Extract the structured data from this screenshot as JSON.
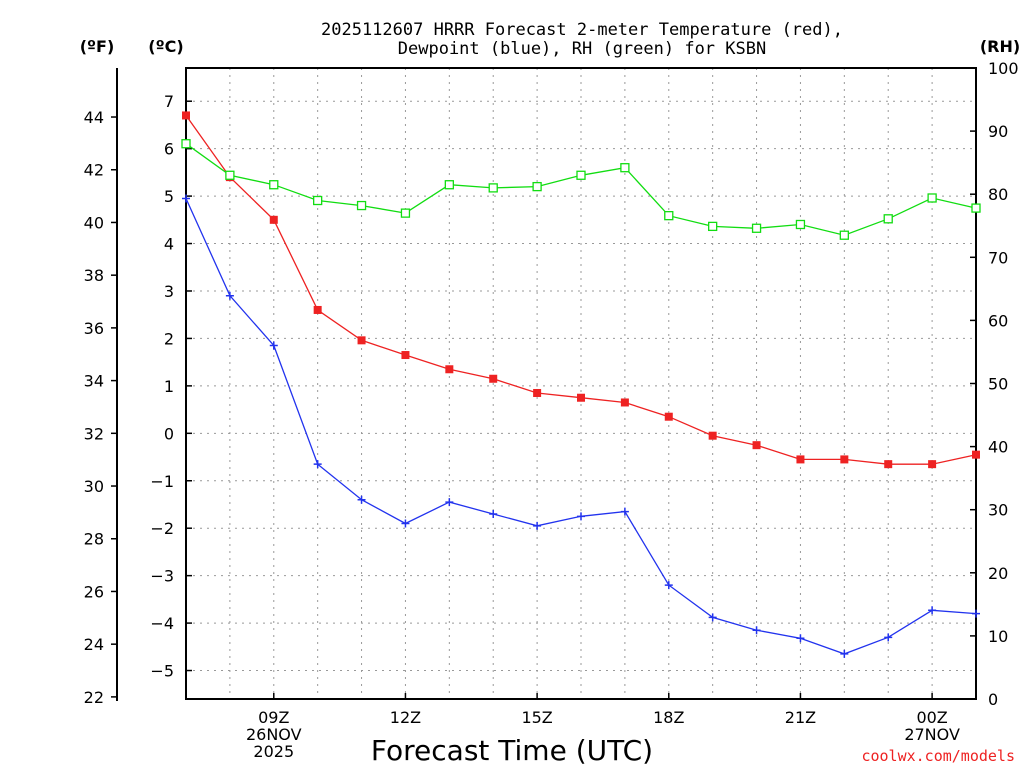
{
  "chart_data": {
    "type": "line",
    "title_lines": [
      "2025112607 HRRR Forecast 2-meter Temperature (red),",
      "Dewpoint (blue), RH (green) for KSBN"
    ],
    "units": {
      "fahrenheit": "(ºF)",
      "celsius": "(ºC)",
      "rh": "(RH)"
    },
    "xlabel": "Forecast Time (UTC)",
    "credit": "coolwx.com/models",
    "colors": {
      "temperature": "#ee2222",
      "dewpoint": "#2233ee",
      "rh": "#11dd11",
      "grid": "#999999"
    },
    "x_hours": [
      7,
      8,
      9,
      10,
      11,
      12,
      13,
      14,
      15,
      16,
      17,
      18,
      19,
      20,
      21,
      22,
      23,
      24,
      25
    ],
    "xlim": [
      7,
      25
    ],
    "x_ticks": [
      {
        "hour": 9,
        "lines": [
          "09Z",
          "26NOV",
          "2025"
        ]
      },
      {
        "hour": 12,
        "lines": [
          "12Z"
        ]
      },
      {
        "hour": 15,
        "lines": [
          "15Z"
        ]
      },
      {
        "hour": 18,
        "lines": [
          "18Z"
        ]
      },
      {
        "hour": 21,
        "lines": [
          "21Z"
        ]
      },
      {
        "hour": 24,
        "lines": [
          "00Z",
          "27NOV"
        ]
      }
    ],
    "celsius_axis": {
      "ylim": [
        -5.6,
        7.7
      ],
      "ticks": [
        "7",
        "6",
        "5",
        "4",
        "3",
        "2",
        "1",
        "0",
        "−1",
        "−2",
        "−3",
        "−4",
        "−5"
      ],
      "tick_values": [
        7,
        6,
        5,
        4,
        3,
        2,
        1,
        0,
        -1,
        -2,
        -3,
        -4,
        -5
      ]
    },
    "fahrenheit_axis": {
      "ticks": [
        "44",
        "42",
        "40",
        "38",
        "36",
        "34",
        "32",
        "30",
        "28",
        "26",
        "24",
        "22"
      ],
      "tick_values": [
        44,
        42,
        40,
        38,
        36,
        34,
        32,
        30,
        28,
        26,
        24,
        22
      ]
    },
    "rh_axis": {
      "ylim": [
        0,
        100
      ],
      "ticks": [
        "100",
        "90",
        "80",
        "70",
        "60",
        "50",
        "40",
        "30",
        "20",
        "10",
        "0"
      ],
      "tick_values": [
        100,
        90,
        80,
        70,
        60,
        50,
        40,
        30,
        20,
        10,
        0
      ]
    },
    "series": [
      {
        "name": "Temperature",
        "axis": "celsius",
        "marker": "square-filled",
        "values": [
          6.7,
          5.4,
          4.5,
          2.6,
          1.96,
          1.65,
          1.35,
          1.15,
          0.85,
          0.75,
          0.65,
          0.35,
          -0.05,
          -0.25,
          -0.55,
          -0.55,
          -0.65,
          -0.65,
          -0.45
        ]
      },
      {
        "name": "Dewpoint",
        "axis": "celsius",
        "marker": "plus",
        "values": [
          4.95,
          2.9,
          1.85,
          -0.65,
          -1.4,
          -1.9,
          -1.45,
          -1.7,
          -1.95,
          -1.75,
          -1.65,
          -3.2,
          -3.88,
          -4.15,
          -4.32,
          -4.65,
          -4.3,
          -3.73,
          -3.8
        ]
      },
      {
        "name": "RH",
        "axis": "rh",
        "marker": "square-open",
        "values": [
          88,
          83,
          81.5,
          79,
          78.2,
          77,
          81.5,
          81,
          81.2,
          83,
          84.2,
          76.6,
          74.9,
          74.6,
          75.2,
          73.5,
          76.1,
          79.4,
          77.8
        ]
      }
    ]
  }
}
